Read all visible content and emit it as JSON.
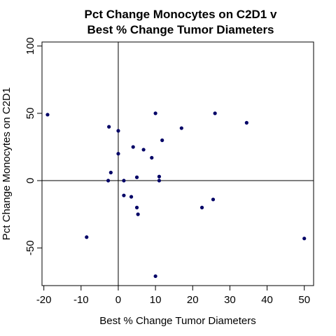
{
  "chart_data": {
    "type": "scatter",
    "title_lines": [
      "Pct Change Monocytes on C2D1 v",
      "Best % Change Tumor Diameters"
    ],
    "xlabel": "Best % Change Tumor Diameters",
    "ylabel": "Pct Change Monocytes on C2D1",
    "xlim": [
      -20.5,
      52.5
    ],
    "ylim": [
      -78,
      103
    ],
    "x_ticks": [
      -20,
      -10,
      0,
      10,
      20,
      30,
      40,
      50
    ],
    "x_tick_labels": [
      "-20",
      "-10",
      "0",
      "10",
      "20",
      "30",
      "40",
      "50"
    ],
    "y_ticks": [
      -50,
      0,
      50,
      100
    ],
    "y_tick_labels": [
      "-50",
      "0",
      "50",
      "100"
    ],
    "reference_lines": {
      "x": 0,
      "y": 0
    },
    "point_color": "#000066",
    "points": [
      {
        "x": -19,
        "y": 49
      },
      {
        "x": -8.5,
        "y": -42
      },
      {
        "x": -2.5,
        "y": 40
      },
      {
        "x": -2.7,
        "y": 0
      },
      {
        "x": -2,
        "y": 6
      },
      {
        "x": 0,
        "y": 37
      },
      {
        "x": 0,
        "y": 20
      },
      {
        "x": 1.5,
        "y": 0
      },
      {
        "x": 1.5,
        "y": -11
      },
      {
        "x": 3.5,
        "y": -12
      },
      {
        "x": 4,
        "y": 25
      },
      {
        "x": 5,
        "y": 2.5
      },
      {
        "x": 5,
        "y": -20
      },
      {
        "x": 5.3,
        "y": -25
      },
      {
        "x": 6.8,
        "y": 23
      },
      {
        "x": 9,
        "y": 17
      },
      {
        "x": 10,
        "y": 50
      },
      {
        "x": 10,
        "y": -71
      },
      {
        "x": 11,
        "y": 3
      },
      {
        "x": 11,
        "y": 0
      },
      {
        "x": 11.8,
        "y": 30
      },
      {
        "x": 17,
        "y": 39
      },
      {
        "x": 22.5,
        "y": -20
      },
      {
        "x": 25.5,
        "y": -14
      },
      {
        "x": 26,
        "y": 50
      },
      {
        "x": 34.5,
        "y": 43
      },
      {
        "x": 50,
        "y": -43
      }
    ]
  }
}
